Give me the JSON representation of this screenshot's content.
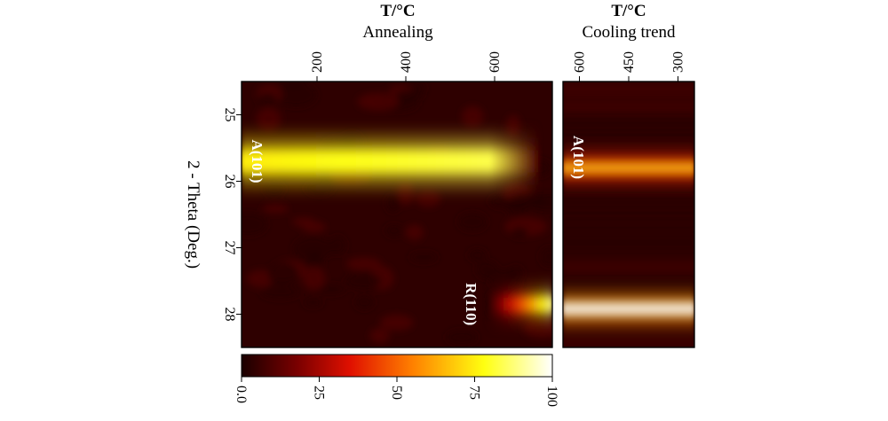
{
  "chart_data": [
    {
      "type": "heatmap",
      "title": "T/°C",
      "subtitle": "Annealing",
      "ylabel": "2 - Theta (Deg.)",
      "x_range": [
        30,
        730
      ],
      "x_ticks": [
        200,
        400,
        600
      ],
      "y_range": [
        24.5,
        28.5
      ],
      "y_ticks": [
        25,
        26,
        27,
        28
      ],
      "bands": [
        {
          "label": "A(101)",
          "center": 25.7,
          "width": 0.22,
          "intensity_start": 75,
          "intensity_end": 85,
          "from": 30,
          "to": 700
        },
        {
          "label": "R(110)",
          "center": 27.85,
          "width": 0.13,
          "intensity_start": 0,
          "intensity_end": 90,
          "from": 580,
          "to": 730
        }
      ],
      "grid": false
    },
    {
      "type": "heatmap",
      "title": "T/°C",
      "subtitle": "Cooling trend",
      "x_range": [
        650,
        250
      ],
      "x_ticks": [
        600,
        450,
        300
      ],
      "y_range": [
        24.5,
        28.5
      ],
      "bands": [
        {
          "label": "A(101)",
          "center": 25.8,
          "width": 0.12,
          "intensity": 65
        },
        {
          "label": "",
          "center": 27.92,
          "width": 0.12,
          "intensity": 100
        }
      ],
      "grid": false
    }
  ],
  "colorbar": {
    "min": 0,
    "max": 100,
    "ticks": [
      "0.0",
      "25",
      "50",
      "75",
      "100"
    ],
    "tick_values": [
      0,
      25,
      50,
      75,
      100
    ]
  }
}
